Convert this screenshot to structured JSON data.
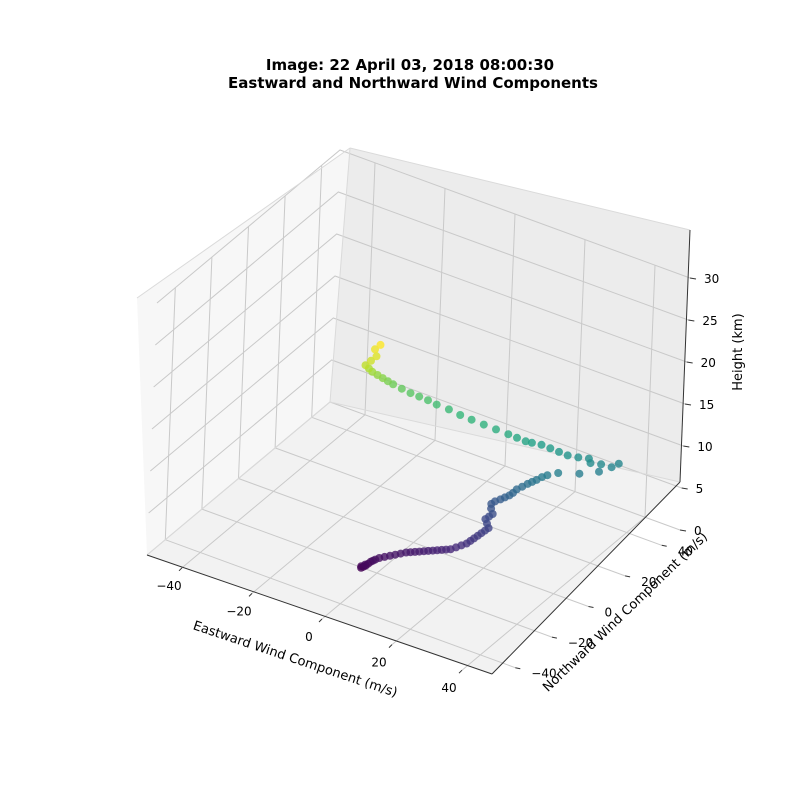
{
  "chart_data": {
    "type": "scatter",
    "projection": "3d",
    "title": "Image: 22 April 03, 2018 08:00:30",
    "subtitle": "Eastward and Northward Wind Components",
    "xlabel": "Eastward Wind Component (m/s)",
    "ylabel": "Northward Wind Component (m/s)",
    "zlabel": "Height (km)",
    "xlim": [
      -50,
      50
    ],
    "ylim": [
      -50,
      50
    ],
    "zlim": [
      0,
      30
    ],
    "xticks": [
      "−40",
      "−20",
      "0",
      "20",
      "40"
    ],
    "yticks": [
      "−40",
      "−20",
      "0",
      "20",
      "40"
    ],
    "zticks": [
      "0",
      "5",
      "10",
      "15",
      "20",
      "25",
      "30"
    ],
    "grid": true,
    "colormap": "viridis",
    "color_by": "height",
    "points": [
      {
        "x": -4.0,
        "y": -21.0,
        "z": 0.2
      },
      {
        "x": -3.6,
        "y": -20.5,
        "z": 0.3
      },
      {
        "x": -3.2,
        "y": -20.0,
        "z": 0.4
      },
      {
        "x": -3.8,
        "y": -21.4,
        "z": 0.5
      },
      {
        "x": -2.8,
        "y": -19.5,
        "z": 0.6
      },
      {
        "x": -3.0,
        "y": -20.8,
        "z": 0.7
      },
      {
        "x": -2.4,
        "y": -19.0,
        "z": 0.8
      },
      {
        "x": -2.0,
        "y": -18.5,
        "z": 0.9
      },
      {
        "x": -1.6,
        "y": -18.0,
        "z": 1.0
      },
      {
        "x": -1.0,
        "y": -17.0,
        "z": 1.1
      },
      {
        "x": 0.0,
        "y": -16.0,
        "z": 1.2
      },
      {
        "x": 1.0,
        "y": -15.0,
        "z": 1.3
      },
      {
        "x": 2.0,
        "y": -14.0,
        "z": 1.4
      },
      {
        "x": 3.0,
        "y": -13.0,
        "z": 1.5
      },
      {
        "x": 4.0,
        "y": -12.0,
        "z": 1.6
      },
      {
        "x": 5.0,
        "y": -11.5,
        "z": 1.7
      },
      {
        "x": 6.0,
        "y": -11.0,
        "z": 1.8
      },
      {
        "x": 7.0,
        "y": -10.5,
        "z": 1.9
      },
      {
        "x": 8.0,
        "y": -10.0,
        "z": 2.0
      },
      {
        "x": 9.0,
        "y": -9.5,
        "z": 2.1
      },
      {
        "x": 10.0,
        "y": -9.0,
        "z": 2.2
      },
      {
        "x": 11.0,
        "y": -8.5,
        "z": 2.3
      },
      {
        "x": 12.0,
        "y": -8.0,
        "z": 2.4
      },
      {
        "x": 13.0,
        "y": -7.5,
        "z": 2.5
      },
      {
        "x": 14.0,
        "y": -7.0,
        "z": 2.6
      },
      {
        "x": 15.0,
        "y": -6.0,
        "z": 2.8
      },
      {
        "x": 16.0,
        "y": -5.0,
        "z": 3.0
      },
      {
        "x": 17.0,
        "y": -4.0,
        "z": 3.2
      },
      {
        "x": 17.5,
        "y": -3.0,
        "z": 3.4
      },
      {
        "x": 18.0,
        "y": -2.0,
        "z": 3.6
      },
      {
        "x": 18.5,
        "y": -1.0,
        "z": 3.8
      },
      {
        "x": 19.0,
        "y": 0.0,
        "z": 4.0
      },
      {
        "x": 19.5,
        "y": 1.0,
        "z": 4.2
      },
      {
        "x": 20.0,
        "y": 2.0,
        "z": 4.4
      },
      {
        "x": 19.0,
        "y": 3.0,
        "z": 4.6
      },
      {
        "x": 18.0,
        "y": 4.0,
        "z": 4.8
      },
      {
        "x": 18.5,
        "y": 5.0,
        "z": 5.0
      },
      {
        "x": 19.0,
        "y": 6.0,
        "z": 5.2
      },
      {
        "x": 18.0,
        "y": 7.0,
        "z": 5.5
      },
      {
        "x": 17.5,
        "y": 8.0,
        "z": 5.8
      },
      {
        "x": 18.0,
        "y": 9.0,
        "z": 6.0
      },
      {
        "x": 19.0,
        "y": 10.0,
        "z": 6.2
      },
      {
        "x": 20.0,
        "y": 10.5,
        "z": 6.5
      },
      {
        "x": 21.0,
        "y": 11.0,
        "z": 6.8
      },
      {
        "x": 21.5,
        "y": 12.0,
        "z": 7.0
      },
      {
        "x": 22.0,
        "y": 13.0,
        "z": 7.3
      },
      {
        "x": 23.0,
        "y": 14.0,
        "z": 7.6
      },
      {
        "x": 24.0,
        "y": 15.0,
        "z": 7.9
      },
      {
        "x": 25.0,
        "y": 15.5,
        "z": 8.2
      },
      {
        "x": 26.0,
        "y": 16.0,
        "z": 8.5
      },
      {
        "x": 27.0,
        "y": 17.0,
        "z": 8.8
      },
      {
        "x": 28.0,
        "y": 18.0,
        "z": 9.0
      },
      {
        "x": 30.0,
        "y": 20.0,
        "z": 9.2
      },
      {
        "x": 34.0,
        "y": 24.0,
        "z": 9.0
      },
      {
        "x": 38.0,
        "y": 27.0,
        "z": 9.3
      },
      {
        "x": 40.0,
        "y": 30.0,
        "z": 9.6
      },
      {
        "x": 41.0,
        "y": 32.0,
        "z": 9.8
      },
      {
        "x": 38.0,
        "y": 28.0,
        "z": 10.0
      },
      {
        "x": 36.0,
        "y": 26.0,
        "z": 10.2
      },
      {
        "x": 35.0,
        "y": 27.0,
        "z": 10.4
      },
      {
        "x": 33.0,
        "y": 25.0,
        "z": 10.6
      },
      {
        "x": 31.0,
        "y": 23.0,
        "z": 10.9
      },
      {
        "x": 29.0,
        "y": 22.0,
        "z": 11.2
      },
      {
        "x": 27.0,
        "y": 21.0,
        "z": 11.5
      },
      {
        "x": 25.0,
        "y": 20.0,
        "z": 11.8
      },
      {
        "x": 23.0,
        "y": 18.5,
        "z": 12.0
      },
      {
        "x": 22.0,
        "y": 17.0,
        "z": 12.3
      },
      {
        "x": 20.0,
        "y": 16.0,
        "z": 12.6
      },
      {
        "x": 18.0,
        "y": 15.0,
        "z": 12.9
      },
      {
        "x": 15.0,
        "y": 14.0,
        "z": 13.2
      },
      {
        "x": 12.0,
        "y": 13.0,
        "z": 13.5
      },
      {
        "x": 9.0,
        "y": 12.0,
        "z": 13.8
      },
      {
        "x": 6.0,
        "y": 11.5,
        "z": 14.0
      },
      {
        "x": 3.0,
        "y": 11.0,
        "z": 14.3
      },
      {
        "x": 0.0,
        "y": 10.0,
        "z": 14.6
      },
      {
        "x": -2.0,
        "y": 9.0,
        "z": 15.0
      },
      {
        "x": -4.0,
        "y": 8.0,
        "z": 15.3
      },
      {
        "x": -6.0,
        "y": 7.0,
        "z": 15.6
      },
      {
        "x": -8.0,
        "y": 6.0,
        "z": 16.0
      },
      {
        "x": -10.0,
        "y": 5.0,
        "z": 16.4
      },
      {
        "x": -11.0,
        "y": 4.0,
        "z": 16.8
      },
      {
        "x": -12.0,
        "y": 3.0,
        "z": 17.2
      },
      {
        "x": -13.0,
        "y": 2.0,
        "z": 17.6
      },
      {
        "x": -14.0,
        "y": 1.0,
        "z": 18.0
      },
      {
        "x": -14.5,
        "y": 0.0,
        "z": 18.5
      },
      {
        "x": -15.0,
        "y": -1.0,
        "z": 19.0
      },
      {
        "x": -14.0,
        "y": 0.0,
        "z": 19.5
      },
      {
        "x": -13.0,
        "y": 1.0,
        "z": 20.0
      },
      {
        "x": -14.0,
        "y": 2.0,
        "z": 20.5
      },
      {
        "x": -13.0,
        "y": 3.0,
        "z": 21.0
      }
    ]
  }
}
